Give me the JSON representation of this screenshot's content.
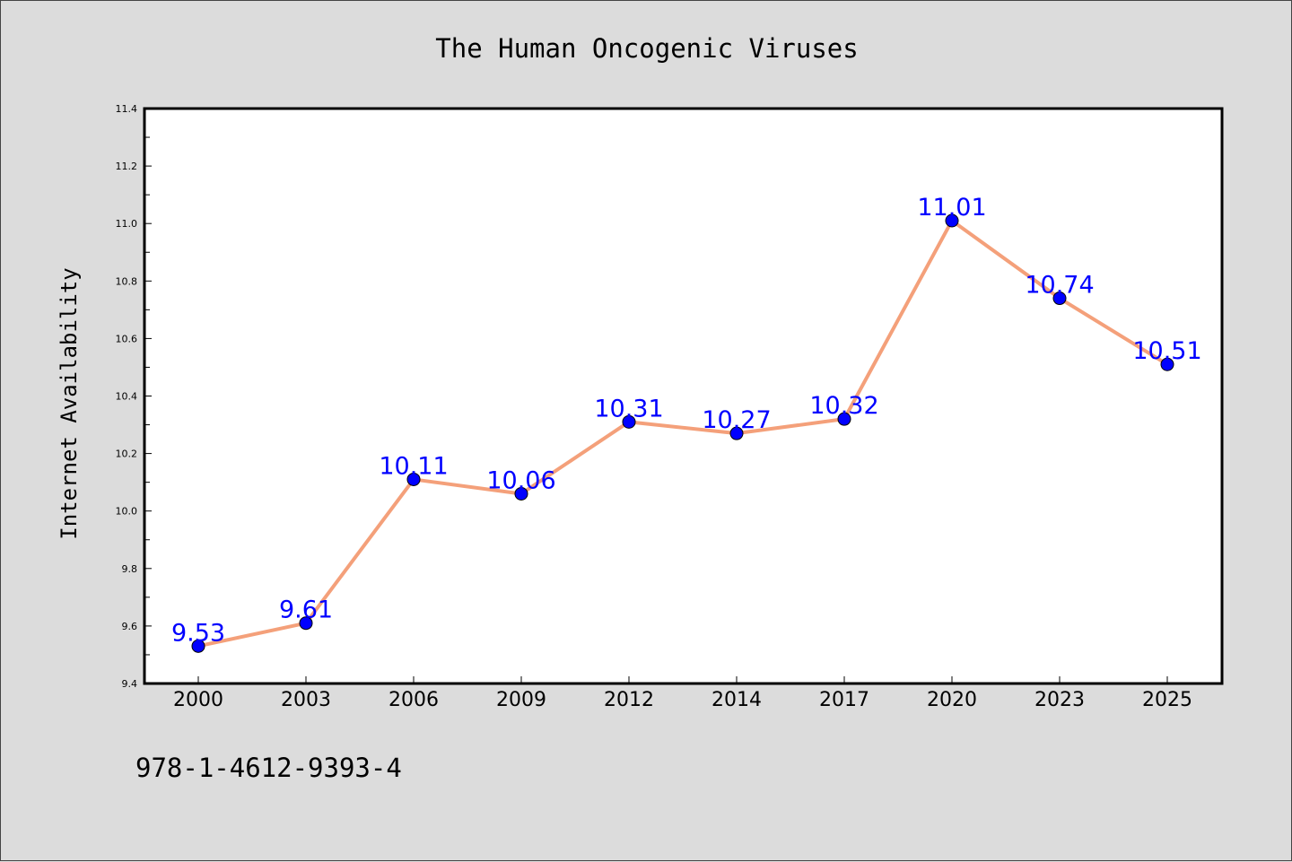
{
  "chart_data": {
    "type": "line",
    "title": "The Human Oncogenic Viruses",
    "xlabel": "",
    "ylabel": "Internet Availability",
    "categories": [
      "2000",
      "2003",
      "2006",
      "2009",
      "2012",
      "2014",
      "2017",
      "2020",
      "2023",
      "2025"
    ],
    "series": [
      {
        "values": [
          9.53,
          9.61,
          10.11,
          10.06,
          10.31,
          10.27,
          10.32,
          11.01,
          10.74,
          10.51
        ],
        "data_labels": [
          "9.53",
          "9.61",
          "10.11",
          "10.06",
          "10.31",
          "10.27",
          "10.32",
          "11.01",
          "10.74",
          "10.51"
        ],
        "line_color": "#f4a07a",
        "marker_color": "#0000ff",
        "label_color": "#0000ff"
      }
    ],
    "ylim": [
      9.4,
      11.4
    ],
    "yticks": [
      "9.4",
      "9.6",
      "9.8",
      "10.0",
      "10.2",
      "10.4",
      "10.6",
      "10.8",
      "11.0",
      "11.2",
      "11.4"
    ],
    "grid": false,
    "legend": "none"
  },
  "footer": {
    "isbn": "978-1-4612-9393-4"
  },
  "colors": {
    "background": "#dcdcdc",
    "plot_background": "#ffffff",
    "axis": "#000000"
  }
}
